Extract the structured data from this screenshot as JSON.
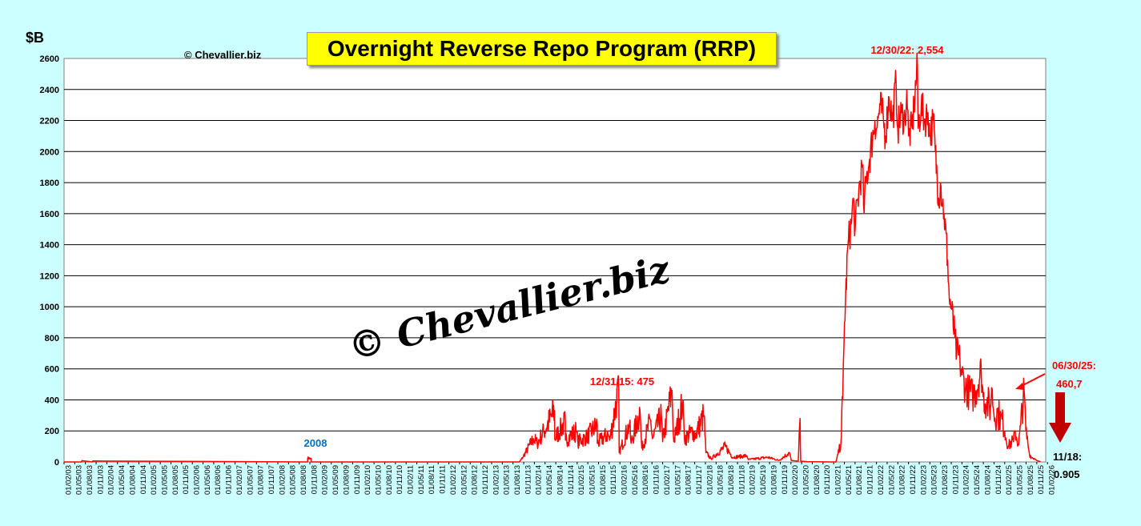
{
  "unit_label": "$B",
  "copyright_small": "© Chevallier.biz",
  "watermark": "© Chevallier.biz",
  "colors": {
    "background": "#ccffff",
    "line": "#ff0000",
    "annotation_red": "#ff0000",
    "annotation_blue": "#0070c0",
    "title_bg": "#ffff00"
  },
  "chart_data": {
    "type": "line",
    "title": "Overnight Reverse Repo Program (RRP)",
    "xlabel": "",
    "ylabel": "$B",
    "ylim": [
      0,
      2600
    ],
    "yticks": [
      0,
      200,
      400,
      600,
      800,
      1000,
      1200,
      1400,
      1600,
      1800,
      2000,
      2200,
      2400,
      2600
    ],
    "xlim": [
      "2003-01-01",
      "2026-01-01"
    ],
    "grid": "horizontal",
    "legend": "none",
    "x_tick_labels": [
      "01/02/03",
      "01/05/03",
      "01/08/03",
      "01/11/03",
      "01/02/04",
      "01/05/04",
      "01/08/04",
      "01/11/04",
      "01/02/05",
      "01/05/05",
      "01/08/05",
      "01/11/05",
      "01/02/06",
      "01/05/06",
      "01/08/06",
      "01/11/06",
      "01/02/07",
      "01/05/07",
      "01/08/07",
      "01/11/07",
      "01/02/08",
      "01/05/08",
      "01/08/08",
      "01/11/08",
      "01/02/09",
      "01/05/09",
      "01/08/09",
      "01/11/09",
      "01/02/10",
      "01/05/10",
      "01/08/10",
      "01/11/10",
      "01/02/11",
      "01/05/11",
      "01/08/11",
      "01/11/11",
      "01/02/12",
      "01/05/12",
      "01/08/12",
      "01/11/12",
      "01/02/13",
      "01/05/13",
      "01/08/13",
      "01/11/13",
      "01/02/14",
      "01/05/14",
      "01/08/14",
      "01/11/14",
      "01/02/15",
      "01/05/15",
      "01/08/15",
      "01/11/15",
      "01/02/16",
      "01/05/16",
      "01/08/16",
      "01/11/16",
      "01/02/17",
      "01/05/17",
      "01/08/17",
      "01/11/17",
      "01/02/18",
      "01/05/18",
      "01/08/18",
      "01/11/18",
      "01/02/19",
      "01/05/19",
      "01/08/19",
      "01/11/19",
      "01/02/20",
      "01/05/20",
      "01/08/20",
      "01/11/20",
      "01/02/21",
      "01/05/21",
      "01/08/21",
      "01/11/21",
      "01/02/22",
      "01/05/22",
      "01/08/22",
      "01/11/22",
      "01/02/23",
      "01/05/23",
      "01/08/23",
      "01/11/23",
      "01/02/24",
      "01/05/24",
      "01/08/24",
      "01/11/24",
      "01/02/25",
      "01/05/25",
      "01/08/25",
      "01/11/25",
      "01/02/26"
    ],
    "series": [
      {
        "x": [
          "2003-01-01",
          "2003-06-01",
          "2003-06-03",
          "2003-09-01",
          "2003-09-03",
          "2008-09-15",
          "2008-09-16",
          "2008-10-15",
          "2008-10-16",
          "2013-09-01",
          "2013-10-01",
          "2013-12-31",
          "2014-02-01",
          "2014-04-01",
          "2014-06-30",
          "2014-07-01",
          "2014-09-30",
          "2014-10-01",
          "2014-12-31",
          "2015-01-15",
          "2015-04-01",
          "2015-06-30",
          "2015-07-01",
          "2015-09-30",
          "2015-10-15",
          "2015-12-31",
          "2016-01-04",
          "2016-03-31",
          "2016-04-15",
          "2016-06-30",
          "2016-07-15",
          "2016-09-30",
          "2016-10-15",
          "2016-12-30",
          "2017-01-10",
          "2017-03-31",
          "2017-04-15",
          "2017-06-30",
          "2017-07-15",
          "2017-09-29",
          "2017-10-15",
          "2017-12-29",
          "2018-01-15",
          "2018-03-01",
          "2018-06-30",
          "2018-09-01",
          "2018-12-31",
          "2019-01-15",
          "2019-06-30",
          "2019-10-01",
          "2019-12-31",
          "2020-01-15",
          "2020-03-15",
          "2020-03-31",
          "2020-04-05",
          "2020-06-01",
          "2020-12-31",
          "2021-02-01",
          "2021-03-15",
          "2021-03-31",
          "2021-04-15",
          "2021-05-15",
          "2021-06-15",
          "2021-06-30",
          "2021-07-15",
          "2021-08-15",
          "2021-09-15",
          "2021-09-30",
          "2021-10-15",
          "2021-11-15",
          "2021-12-31",
          "2022-01-15",
          "2022-02-15",
          "2022-03-15",
          "2022-03-31",
          "2022-05-01",
          "2022-06-01",
          "2022-06-30",
          "2022-07-15",
          "2022-08-15",
          "2022-09-15",
          "2022-09-30",
          "2022-10-15",
          "2022-11-15",
          "2022-12-01",
          "2022-12-30",
          "2023-01-05",
          "2023-02-01",
          "2023-03-01",
          "2023-03-31",
          "2023-04-15",
          "2023-05-15",
          "2023-06-01",
          "2023-06-30",
          "2023-07-15",
          "2023-08-15",
          "2023-09-15",
          "2023-09-29",
          "2023-10-15",
          "2023-11-15",
          "2023-12-01",
          "2023-12-29",
          "2024-01-15",
          "2024-02-15",
          "2024-03-15",
          "2024-04-15",
          "2024-05-15",
          "2024-06-28",
          "2024-07-15",
          "2024-08-15",
          "2024-09-15",
          "2024-09-30",
          "2024-10-15",
          "2024-11-15",
          "2024-12-31",
          "2025-01-15",
          "2025-02-15",
          "2025-03-15",
          "2025-03-31",
          "2025-04-15",
          "2025-05-15",
          "2025-06-01",
          "2025-06-30",
          "2025-07-15",
          "2025-08-01",
          "2025-08-15",
          "2025-09-01",
          "2025-09-30",
          "2025-10-15",
          "2025-11-18"
        ],
        "values": [
          0,
          0,
          8,
          0,
          6,
          0,
          25,
          22,
          0,
          0,
          30,
          150,
          120,
          200,
          330,
          150,
          260,
          140,
          200,
          130,
          160,
          240,
          120,
          180,
          140,
          475,
          60,
          240,
          120,
          330,
          90,
          270,
          150,
          300,
          130,
          460,
          130,
          380,
          150,
          200,
          170,
          300,
          60,
          20,
          100,
          30,
          40,
          15,
          30,
          10,
          60,
          10,
          5,
          280,
          5,
          2,
          0,
          0,
          120,
          400,
          900,
          1400,
          1550,
          1700,
          1500,
          1750,
          1900,
          1600,
          1800,
          1950,
          2200,
          2150,
          2300,
          2200,
          2100,
          2350,
          2200,
          2450,
          2150,
          2250,
          2200,
          2400,
          2100,
          2150,
          2300,
          2554,
          2150,
          2300,
          2200,
          2250,
          2100,
          2200,
          2000,
          1700,
          1800,
          1600,
          1300,
          1050,
          1000,
          800,
          700,
          650,
          560,
          480,
          450,
          430,
          460,
          600,
          420,
          380,
          350,
          470,
          300,
          320,
          250,
          200,
          100,
          130,
          130,
          200,
          110,
          240,
          460.7,
          200,
          120,
          50,
          30,
          20,
          10,
          0.905
        ]
      }
    ],
    "annotations": [
      {
        "text": "12/30/22: 2,554"
      },
      {
        "text": "12/31/15: 475"
      },
      {
        "text": "2008"
      },
      {
        "text": "06/30/25:"
      },
      {
        "text": "460,7"
      },
      {
        "text": "11/18:"
      },
      {
        "text": "0.905"
      }
    ]
  }
}
